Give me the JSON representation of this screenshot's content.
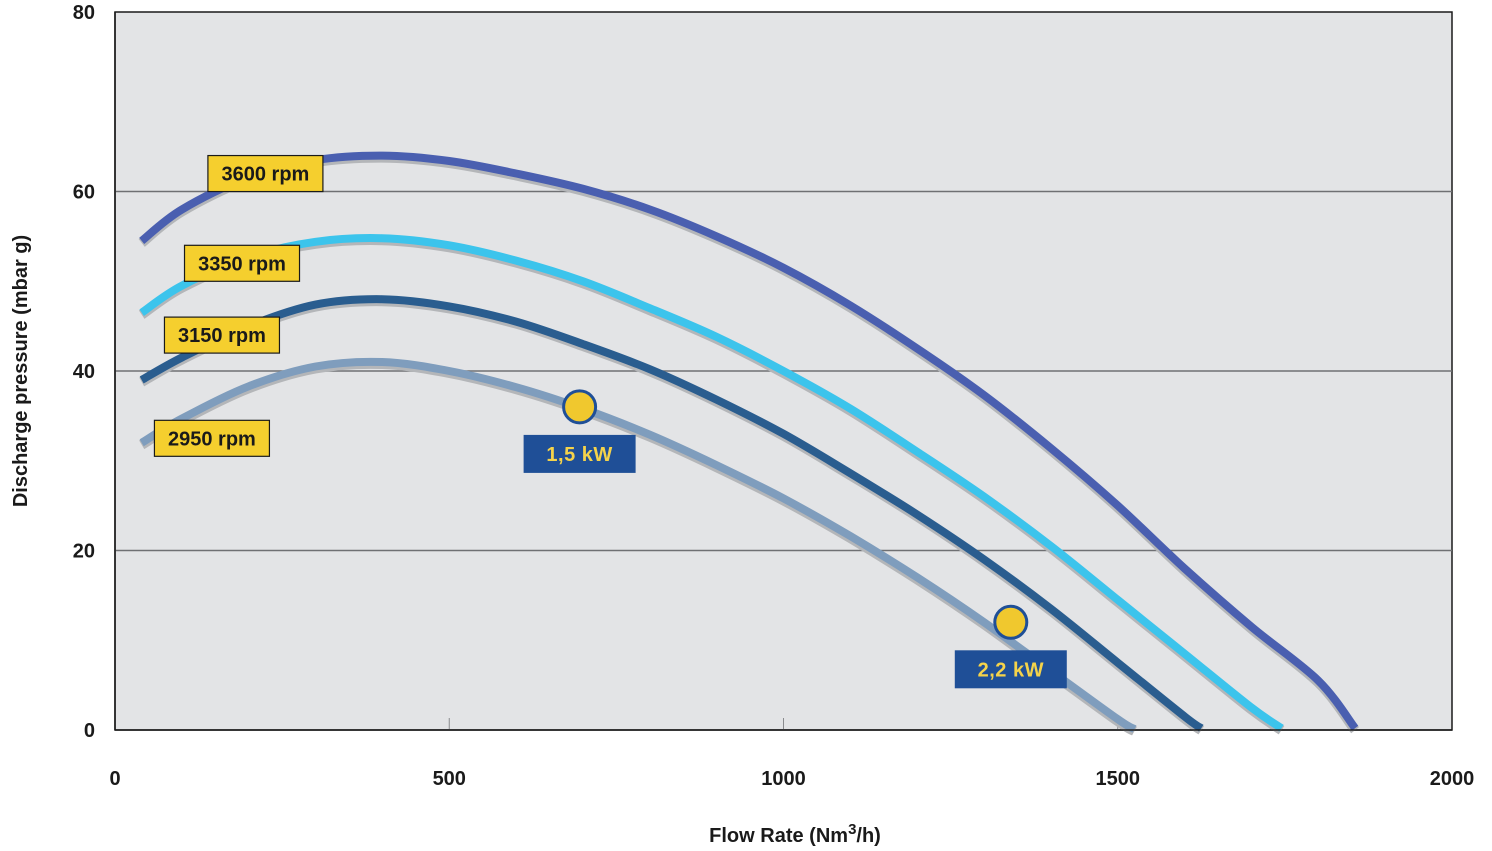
{
  "chart_data": {
    "type": "line",
    "xlabel": "Flow Rate (Nm",
    "xlabel_sup": "3",
    "xlabel_suffix": "/h)",
    "ylabel": "Discharge pressure (mbar g)",
    "xlim": [
      0,
      2000
    ],
    "ylim": [
      0,
      80
    ],
    "x_ticks": [
      0,
      500,
      1000,
      1500,
      2000
    ],
    "y_ticks": [
      0,
      20,
      40,
      60,
      80
    ],
    "grid": "horizontal",
    "background": "#e3e4e6",
    "series": [
      {
        "name": "3600 rpm",
        "color": "#4a5fb0",
        "x": [
          40,
          100,
          200,
          300,
          400,
          500,
          600,
          700,
          800,
          900,
          1000,
          1100,
          1200,
          1300,
          1400,
          1500,
          1600,
          1700,
          1800,
          1855
        ],
        "y": [
          54.5,
          58,
          61.6,
          63.5,
          64,
          63.4,
          62,
          60.3,
          58,
          55,
          51.5,
          47.3,
          42.5,
          37.3,
          31.4,
          25,
          18,
          11.5,
          5.5,
          0.2
        ]
      },
      {
        "name": "3350 rpm",
        "color": "#3cc4ec",
        "x": [
          40,
          100,
          200,
          300,
          400,
          500,
          600,
          700,
          800,
          900,
          1000,
          1100,
          1200,
          1300,
          1400,
          1500,
          1600,
          1700,
          1745
        ],
        "y": [
          46.5,
          49.5,
          52.7,
          54.4,
          54.8,
          54,
          52.3,
          50,
          47,
          43.8,
          40,
          35.8,
          31,
          26,
          20.5,
          14.5,
          8.5,
          2.5,
          0.2
        ]
      },
      {
        "name": "3150 rpm",
        "color": "#2a5d8f",
        "x": [
          40,
          100,
          200,
          300,
          400,
          500,
          600,
          700,
          800,
          900,
          1000,
          1100,
          1200,
          1300,
          1400,
          1500,
          1600,
          1625
        ],
        "y": [
          39,
          41.5,
          45,
          47.4,
          48,
          47.2,
          45.5,
          43,
          40.2,
          36.8,
          33,
          28.6,
          24,
          19,
          13.5,
          7.5,
          1.5,
          0.2
        ]
      },
      {
        "name": "2950 rpm",
        "color": "#7f9dbd",
        "x": [
          40,
          100,
          200,
          300,
          400,
          500,
          600,
          700,
          800,
          900,
          1000,
          1100,
          1200,
          1300,
          1400,
          1500,
          1525
        ],
        "y": [
          32,
          34.7,
          38.3,
          40.5,
          41,
          40,
          38.2,
          35.8,
          32.9,
          29.5,
          25.8,
          21.6,
          17,
          12,
          6.6,
          1.2,
          0.1
        ]
      }
    ],
    "annotations": [
      {
        "text": "3600 rpm",
        "series": "3600 rpm",
        "x": 225,
        "y": 62
      },
      {
        "text": "3350 rpm",
        "series": "3350 rpm",
        "x": 190,
        "y": 52
      },
      {
        "text": "3150 rpm",
        "series": "3150 rpm",
        "x": 160,
        "y": 44
      },
      {
        "text": "2950 rpm",
        "series": "2950 rpm",
        "x": 145,
        "y": 32.5
      }
    ],
    "power_points": [
      {
        "label": "1,5 kW",
        "x": 695,
        "y": 36
      },
      {
        "label": "2,2 kW",
        "x": 1340,
        "y": 12
      }
    ]
  }
}
